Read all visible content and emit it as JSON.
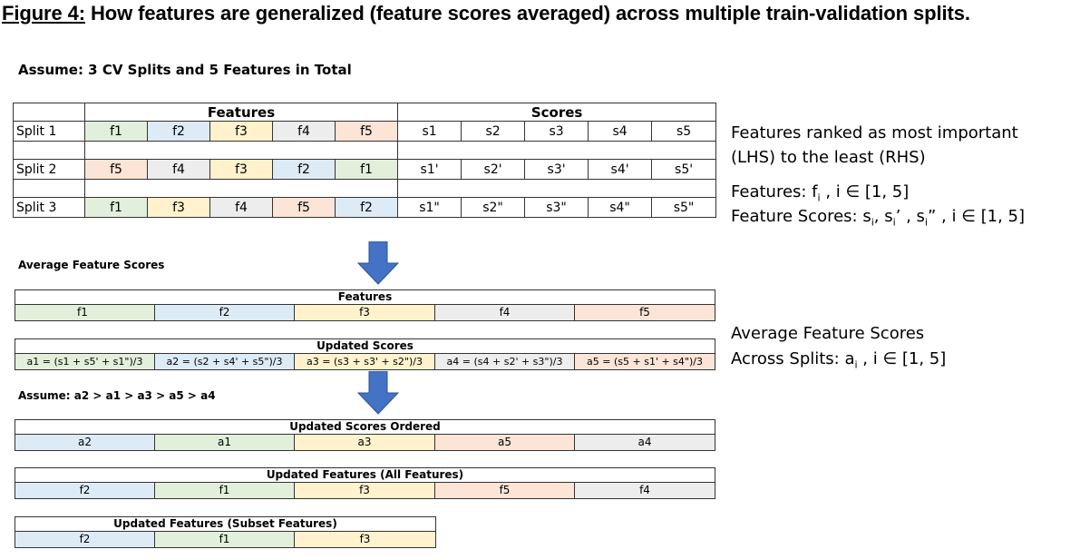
{
  "figure": {
    "label": "Figure 4:",
    "title": " How features are generalized (feature scores averaged) across multiple train-validation splits."
  },
  "assumption_1": "Assume: 3 CV Splits and 5 Features in Total",
  "top_table": {
    "features_header": "Features",
    "scores_header": "Scores",
    "rows": [
      {
        "label": "Split 1",
        "features": [
          "f1",
          "f2",
          "f3",
          "f4",
          "f5"
        ],
        "scores": [
          "s1",
          "s2",
          "s3",
          "s4",
          "s5"
        ]
      },
      {
        "label": "Split 2",
        "features": [
          "f5",
          "f4",
          "f3",
          "f2",
          "f1"
        ],
        "scores": [
          "s1'",
          "s2'",
          "s3'",
          "s4'",
          "s5'"
        ]
      },
      {
        "label": "Split 3",
        "features": [
          "f1",
          "f3",
          "f4",
          "f5",
          "f2"
        ],
        "scores": [
          "s1\"",
          "s2\"",
          "s3\"",
          "s4\"",
          "s5\""
        ]
      }
    ]
  },
  "feature_colors": {
    "f1": "#e2efda",
    "f2": "#ddebf7",
    "f3": "#fff2cc",
    "f4": "#ededed",
    "f5": "#fce4d6"
  },
  "avg_section_title": "Average Feature Scores",
  "features_strip": {
    "header": "Features",
    "cells": [
      "f1",
      "f2",
      "f3",
      "f4",
      "f5"
    ]
  },
  "updated_scores_strip": {
    "header": "Updated Scores",
    "cells": [
      "a1 = (s1 + s5' + s1\")/3",
      "a2 = (s2 + s4' + s5\")/3",
      "a3 = (s3 + s3' + s2\")/3",
      "a4 = (s4 + s2' + s3\")/3",
      "a5 = (s5 + s1' + s4\")/3"
    ]
  },
  "assumption_2": "Assume: a2 > a1 > a3 > a5 > a4",
  "ordered_scores_strip": {
    "header": "Updated Scores Ordered",
    "cells": [
      "a2",
      "a1",
      "a3",
      "a5",
      "a4"
    ]
  },
  "all_features_strip": {
    "header": "Updated Features (All Features)",
    "cells": [
      "f2",
      "f1",
      "f3",
      "f5",
      "f4"
    ]
  },
  "subset_features_strip": {
    "header": "Updated Features (Subset Features)",
    "cells": [
      "f2",
      "f1",
      "f3"
    ]
  },
  "notes": {
    "ranked_line1": "Features ranked as most important",
    "ranked_line2": "(LHS) to the least (RHS)",
    "features_def": {
      "prefix": "Features: f",
      "sub": "i",
      "suffix": " , i ∈ [1, 5]"
    },
    "scores_def": {
      "prefix": "Feature Scores: s",
      "sub1": "i",
      "mid1": ", s",
      "sub2": "i",
      "mid2": "’ , s",
      "sub3": "i",
      "suffix": "” , i ∈ [1, 5]"
    },
    "avg_line1": "Average Feature Scores",
    "avg_def": {
      "prefix": "Across Splits: a",
      "sub": "i",
      "suffix": " , i ∈ [1, 5]"
    }
  }
}
